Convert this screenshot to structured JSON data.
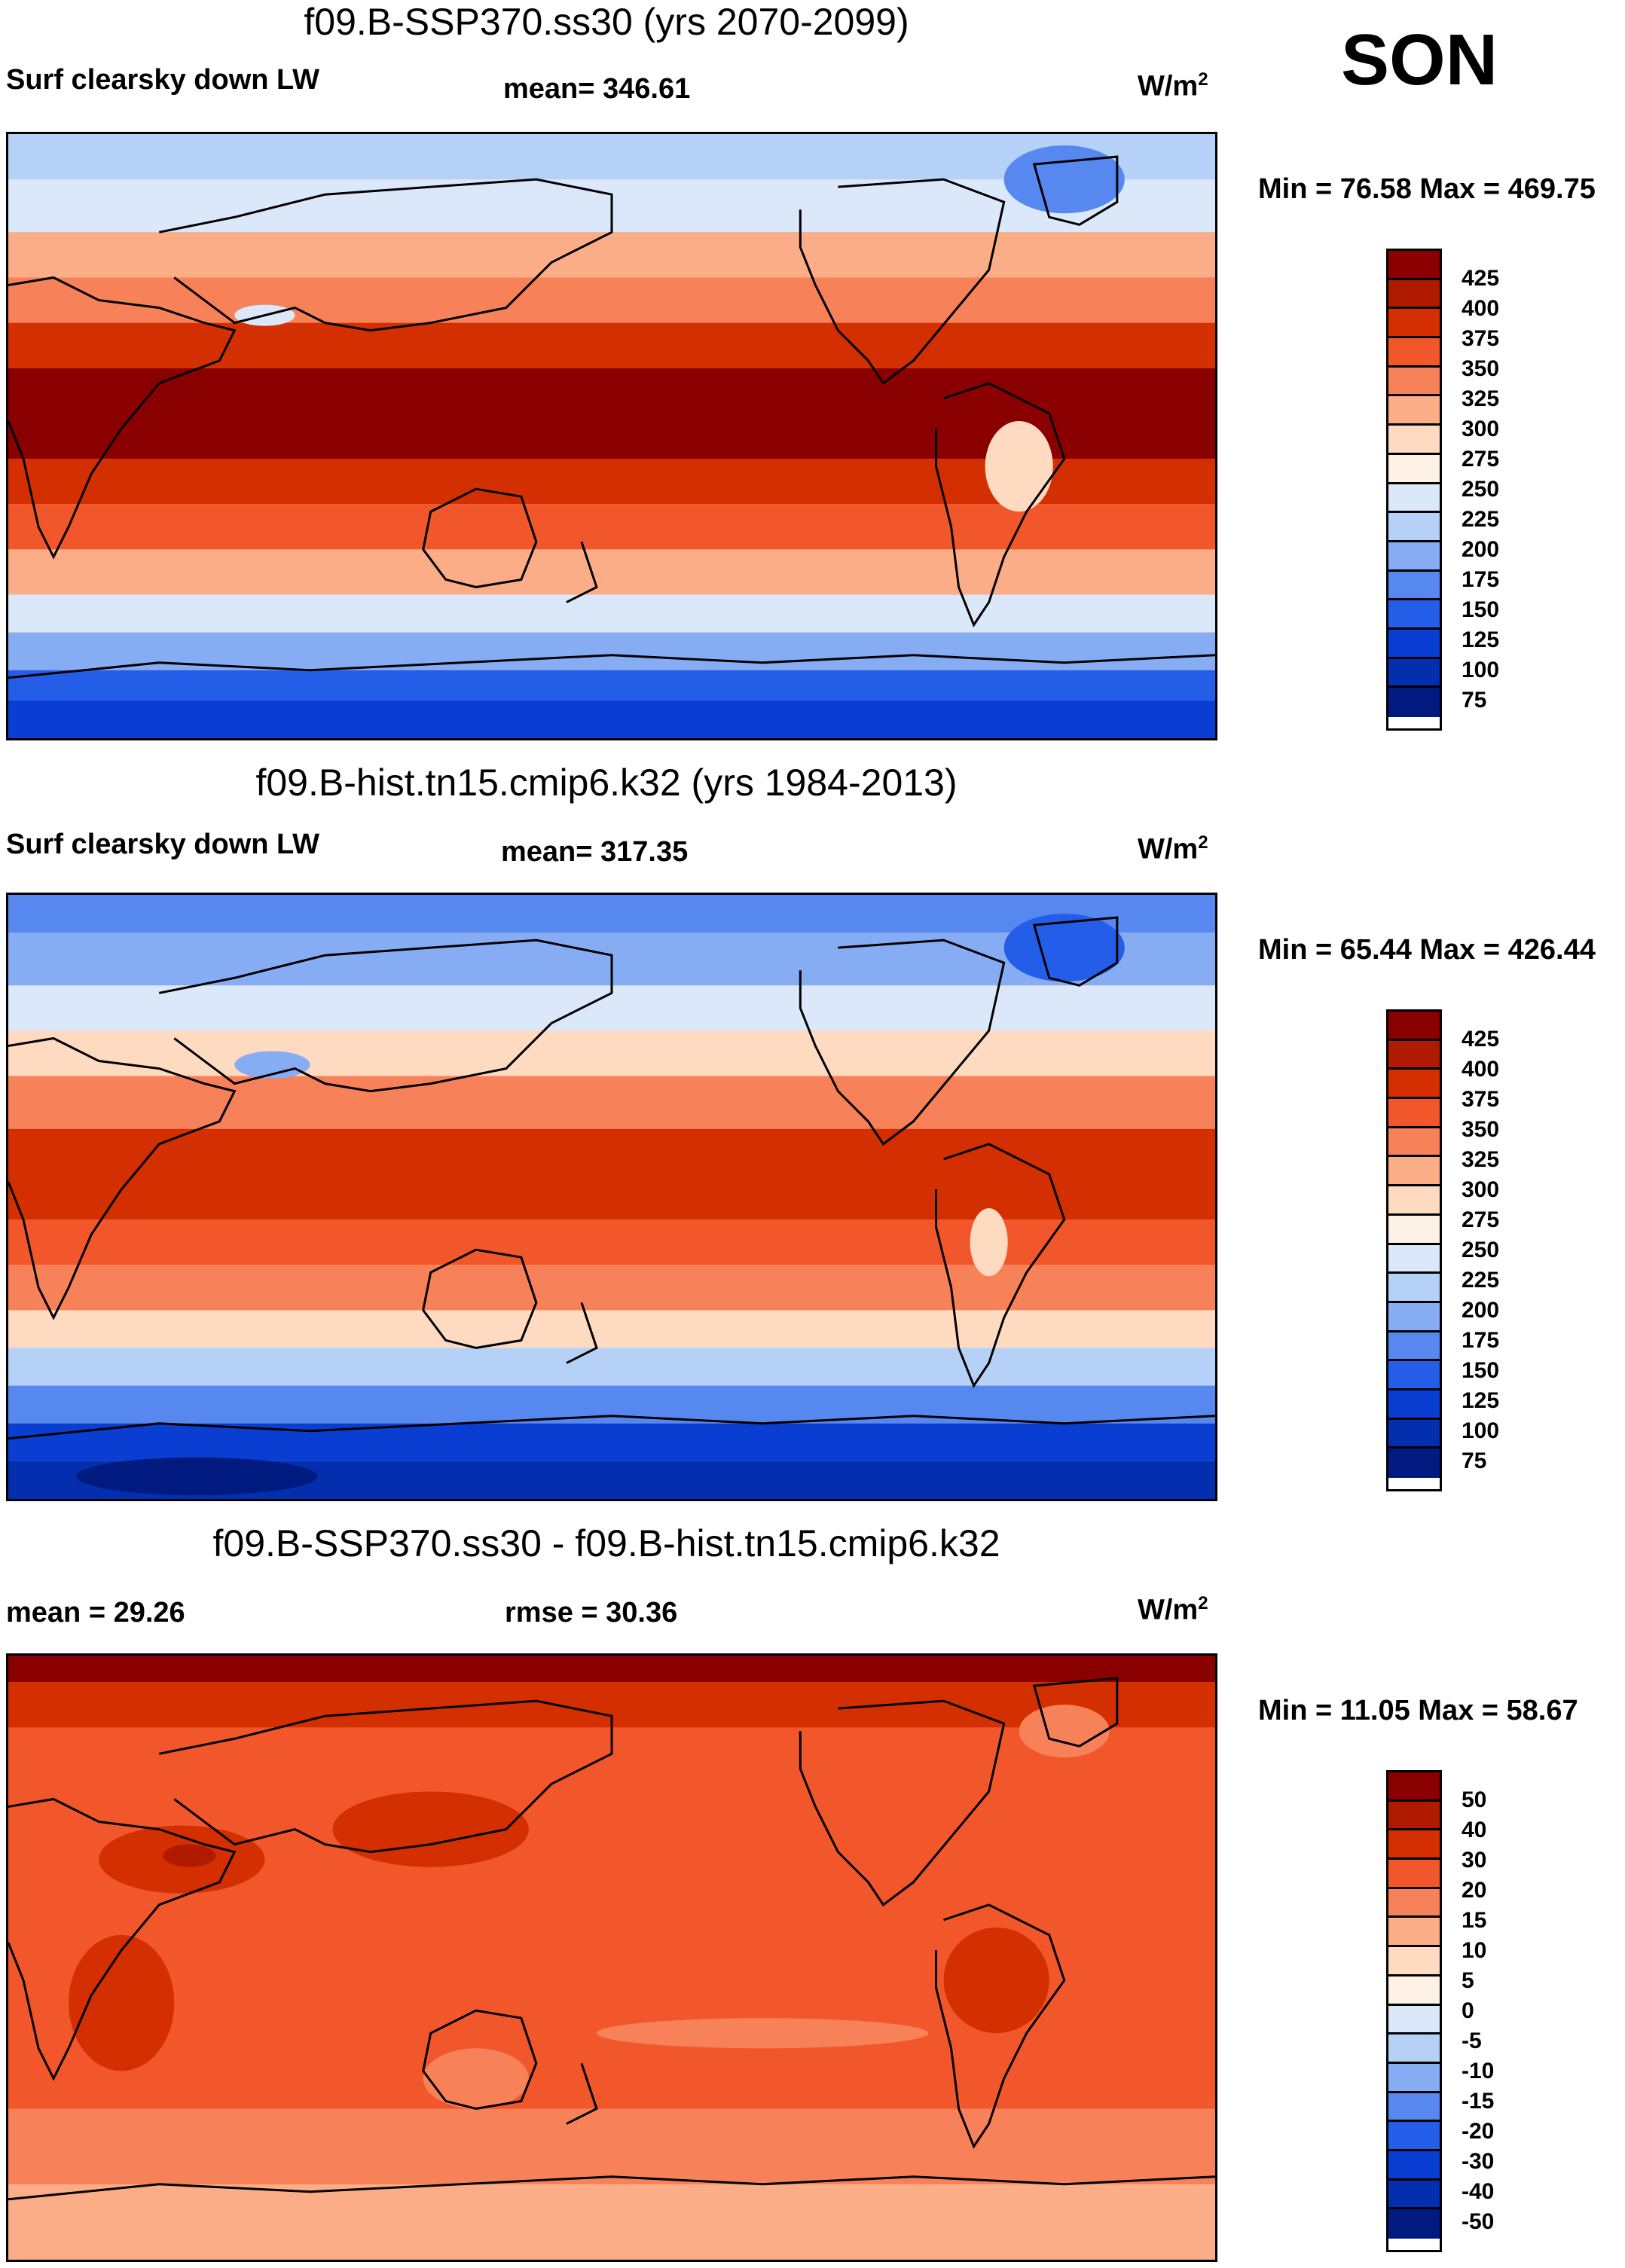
{
  "season": "SON",
  "panels": [
    {
      "title": "f09.B-SSP370.ss30 (yrs 2070-2099)",
      "variable": "Surf clearsky down LW",
      "stat1": "mean= 346.61",
      "stat2": "",
      "units_base": "W/m",
      "units_exp": "2",
      "minmax": "Min =  76.58 Max = 469.75",
      "levels": [
        "425",
        "400",
        "375",
        "350",
        "325",
        "300",
        "275",
        "250",
        "225",
        "200",
        "175",
        "150",
        "125",
        "100",
        "75"
      ],
      "colors": [
        "#8a0000",
        "#b01a00",
        "#d42f00",
        "#f2562b",
        "#f78158",
        "#fbad87",
        "#fedac0",
        "#fef1e5",
        "#dbe8fa",
        "#b6d1f7",
        "#86acf4",
        "#5688ef",
        "#245ee8",
        "#0a3ed2",
        "#032fae",
        "#001a80"
      ]
    },
    {
      "title": "f09.B-hist.tn15.cmip6.k32 (yrs 1984-2013)",
      "variable": "Surf clearsky down LW",
      "stat1": "mean= 317.35",
      "stat2": "",
      "units_base": "W/m",
      "units_exp": "2",
      "minmax": "Min =  65.44 Max = 426.44",
      "levels": [
        "425",
        "400",
        "375",
        "350",
        "325",
        "300",
        "275",
        "250",
        "225",
        "200",
        "175",
        "150",
        "125",
        "100",
        "75"
      ],
      "colors": [
        "#8a0000",
        "#b01a00",
        "#d42f00",
        "#f2562b",
        "#f78158",
        "#fbad87",
        "#fedac0",
        "#fef1e5",
        "#dbe8fa",
        "#b6d1f7",
        "#86acf4",
        "#5688ef",
        "#245ee8",
        "#0a3ed2",
        "#032fae",
        "#001a80"
      ]
    },
    {
      "title": "f09.B-SSP370.ss30 - f09.B-hist.tn15.cmip6.k32",
      "variable": "",
      "stat1": "mean =  29.26",
      "stat2": "rmse =  30.36",
      "units_base": "W/m",
      "units_exp": "2",
      "minmax": "Min =  11.05 Max =  58.67",
      "levels": [
        "50",
        "40",
        "30",
        "20",
        "15",
        "10",
        "5",
        "0",
        "-5",
        "-10",
        "-15",
        "-20",
        "-30",
        "-40",
        "-50"
      ],
      "colors": [
        "#8a0000",
        "#b01a00",
        "#d42f00",
        "#f2562b",
        "#f78158",
        "#fbad87",
        "#fedac0",
        "#fef1e5",
        "#dbe8fa",
        "#b6d1f7",
        "#86acf4",
        "#5688ef",
        "#245ee8",
        "#0a3ed2",
        "#032fae",
        "#001a80"
      ]
    }
  ]
}
